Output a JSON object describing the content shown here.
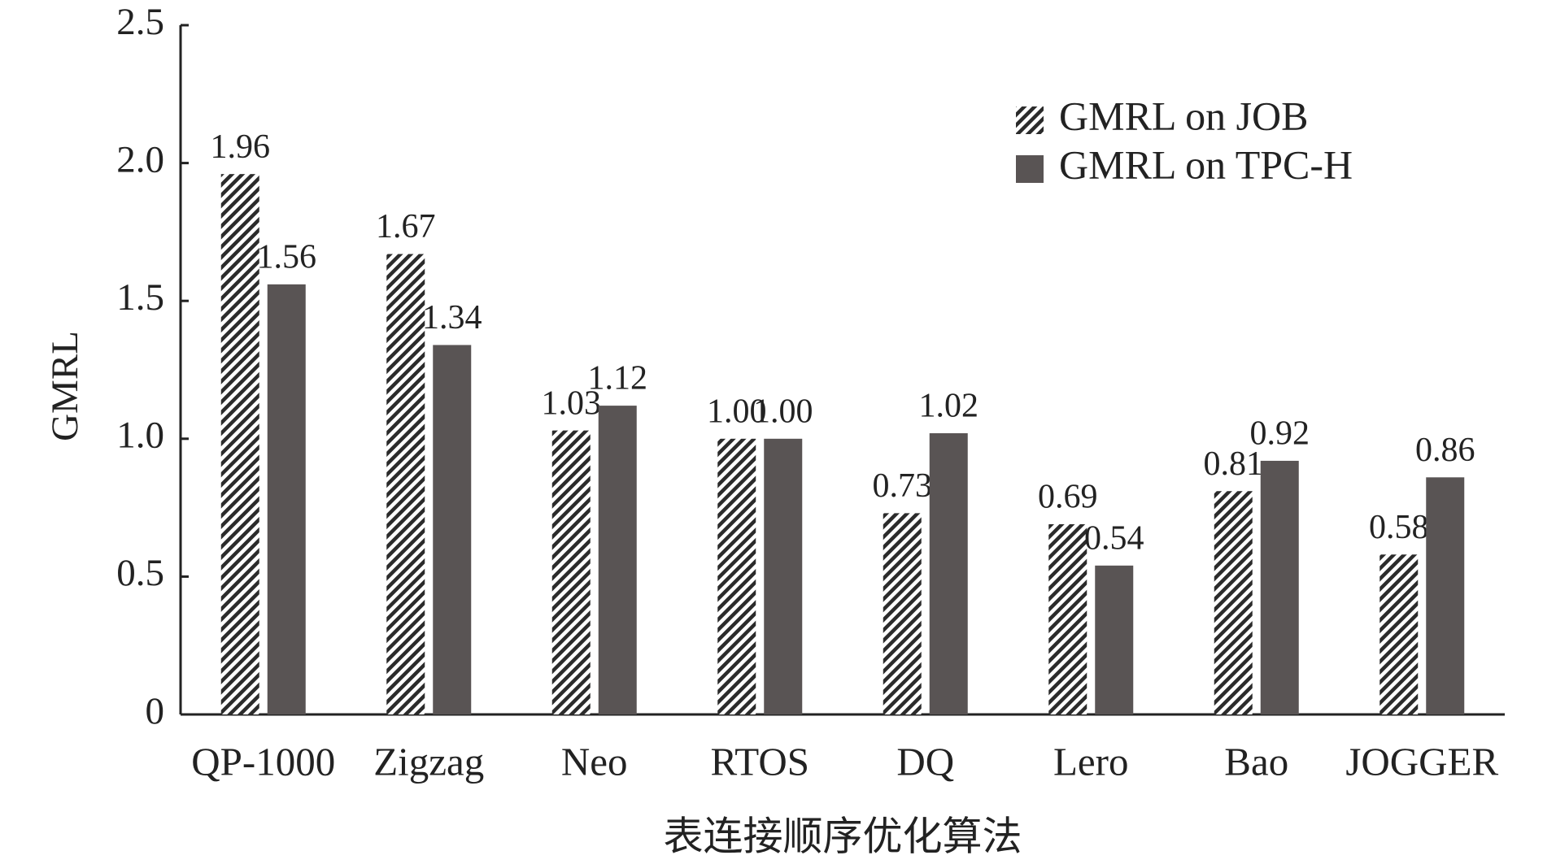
{
  "chart_data": {
    "type": "bar",
    "categories": [
      "QP-1000",
      "Zigzag",
      "Neo",
      "RTOS",
      "DQ",
      "Lero",
      "Bao",
      "JOGGER"
    ],
    "series": [
      {
        "name": "GMRL on JOB",
        "color": "#2b2b2b",
        "pattern": "hatch",
        "values": [
          1.96,
          1.67,
          1.03,
          1.0,
          0.73,
          0.69,
          0.81,
          0.58
        ],
        "value_labels": [
          "1.96",
          "1.67",
          "1.03",
          "1.00",
          "0.73",
          "0.69",
          "0.81",
          "0.58"
        ]
      },
      {
        "name": "GMRL on TPC-H",
        "color": "#595454",
        "pattern": "solid",
        "values": [
          1.56,
          1.34,
          1.12,
          1.0,
          1.02,
          0.54,
          0.92,
          0.86
        ],
        "value_labels": [
          "1.56",
          "1.34",
          "1.12",
          "1.00",
          "1.02",
          "0.54",
          "0.92",
          "0.86"
        ]
      }
    ],
    "y_label": "GMRL",
    "x_label": "表连接顺序优化算法",
    "ylim": [
      0,
      2.5
    ],
    "yticks": [
      0,
      0.5,
      {
        "value": 1,
        "label": "1.0"
      },
      1.5,
      {
        "value": 2,
        "label": "2.0"
      },
      2.5
    ],
    "grid": false,
    "legend": "upper right"
  }
}
